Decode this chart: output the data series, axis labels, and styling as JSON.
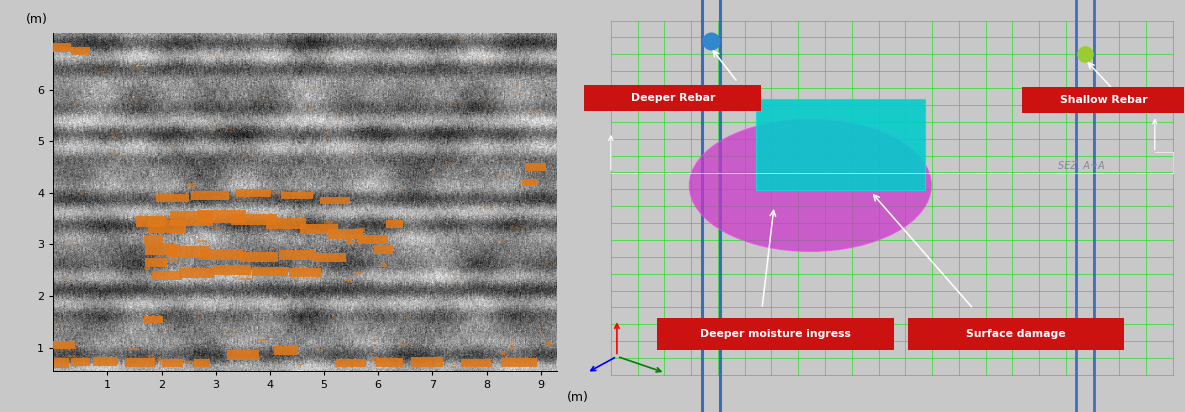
{
  "left_panel": {
    "bg_color": "#c8c8c8",
    "plot_bg": "#ffffff",
    "xlabel": "(m)",
    "ylabel": "(m)",
    "xlim": [
      0,
      9.3
    ],
    "ylim": [
      0.55,
      7.1
    ],
    "xticks": [
      1,
      2,
      3,
      4,
      5,
      6,
      7,
      8,
      9
    ],
    "yticks": [
      1,
      2,
      3,
      4,
      5,
      6
    ]
  },
  "right_panel": {
    "bg_color": "#151520",
    "grid_color": "#22dd22",
    "blue_rebar_color": "#3366bb",
    "dot_deep_color": "#3388cc",
    "dot_shallow_color": "#99cc33",
    "ellipse_color": "#cc33cc",
    "rect_color": "#00cccc",
    "label_bg": "#cc1111",
    "label_fg": "#ffffff",
    "arrow_color": "#ffffff",
    "sez_color": "#888899",
    "labels": {
      "deeper_rebar": "Deeper Rebar",
      "shallow_rebar": "Shallow Rebar",
      "deeper_moisture": "Deeper moisture ingress",
      "surface_damage": "Surface damage"
    }
  }
}
